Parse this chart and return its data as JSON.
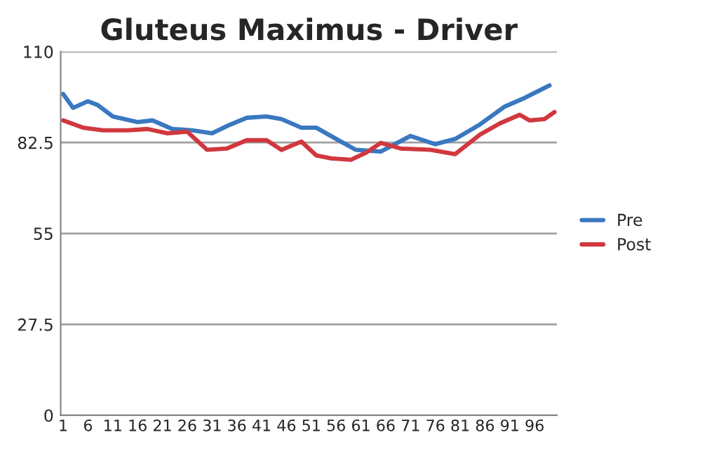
{
  "chart_data": {
    "type": "line",
    "title": "Gluteus Maximus - Driver",
    "xlim": [
      0.5,
      100.5
    ],
    "xticks": [
      1,
      6,
      11,
      16,
      21,
      26,
      31,
      36,
      41,
      46,
      51,
      56,
      61,
      66,
      71,
      76,
      81,
      86,
      91,
      96
    ],
    "ylim": [
      0,
      110
    ],
    "yticks": [
      0,
      27.5,
      55,
      82.5,
      110
    ],
    "grid": "y",
    "legend": "right",
    "line_style": "solid",
    "marker": "none",
    "series": [
      {
        "name": "Pre",
        "color": "#3a78c0",
        "x": [
          1,
          3,
          6,
          8,
          11,
          16,
          19,
          23,
          27,
          31,
          34,
          38,
          42,
          45,
          49,
          52,
          56,
          60,
          65,
          71,
          76,
          80,
          85,
          90,
          94,
          99
        ],
        "values": [
          97.2,
          93,
          95,
          93.8,
          90.4,
          88.7,
          89.2,
          86.6,
          86.2,
          85.3,
          87.5,
          90,
          90.4,
          89.6,
          87,
          87,
          83.6,
          80.3,
          79.8,
          84.5,
          82,
          83.6,
          88,
          93.4,
          96,
          99.8
        ]
      },
      {
        "name": "Post",
        "color": "#d0383e",
        "x": [
          1,
          5,
          9,
          14,
          18,
          22,
          26,
          30,
          34,
          38,
          42,
          45,
          49,
          52,
          55,
          59,
          62,
          65,
          69,
          75,
          80,
          85,
          89,
          93,
          95,
          98,
          100
        ],
        "values": [
          89.2,
          87,
          86.2,
          86.2,
          86.6,
          85.3,
          85.8,
          80.3,
          80.7,
          83.2,
          83.2,
          80.3,
          82.8,
          78.6,
          77.7,
          77.3,
          79.4,
          82.4,
          80.7,
          80.3,
          79,
          84.9,
          88.3,
          90.9,
          89.2,
          89.6,
          91.7
        ]
      }
    ]
  }
}
